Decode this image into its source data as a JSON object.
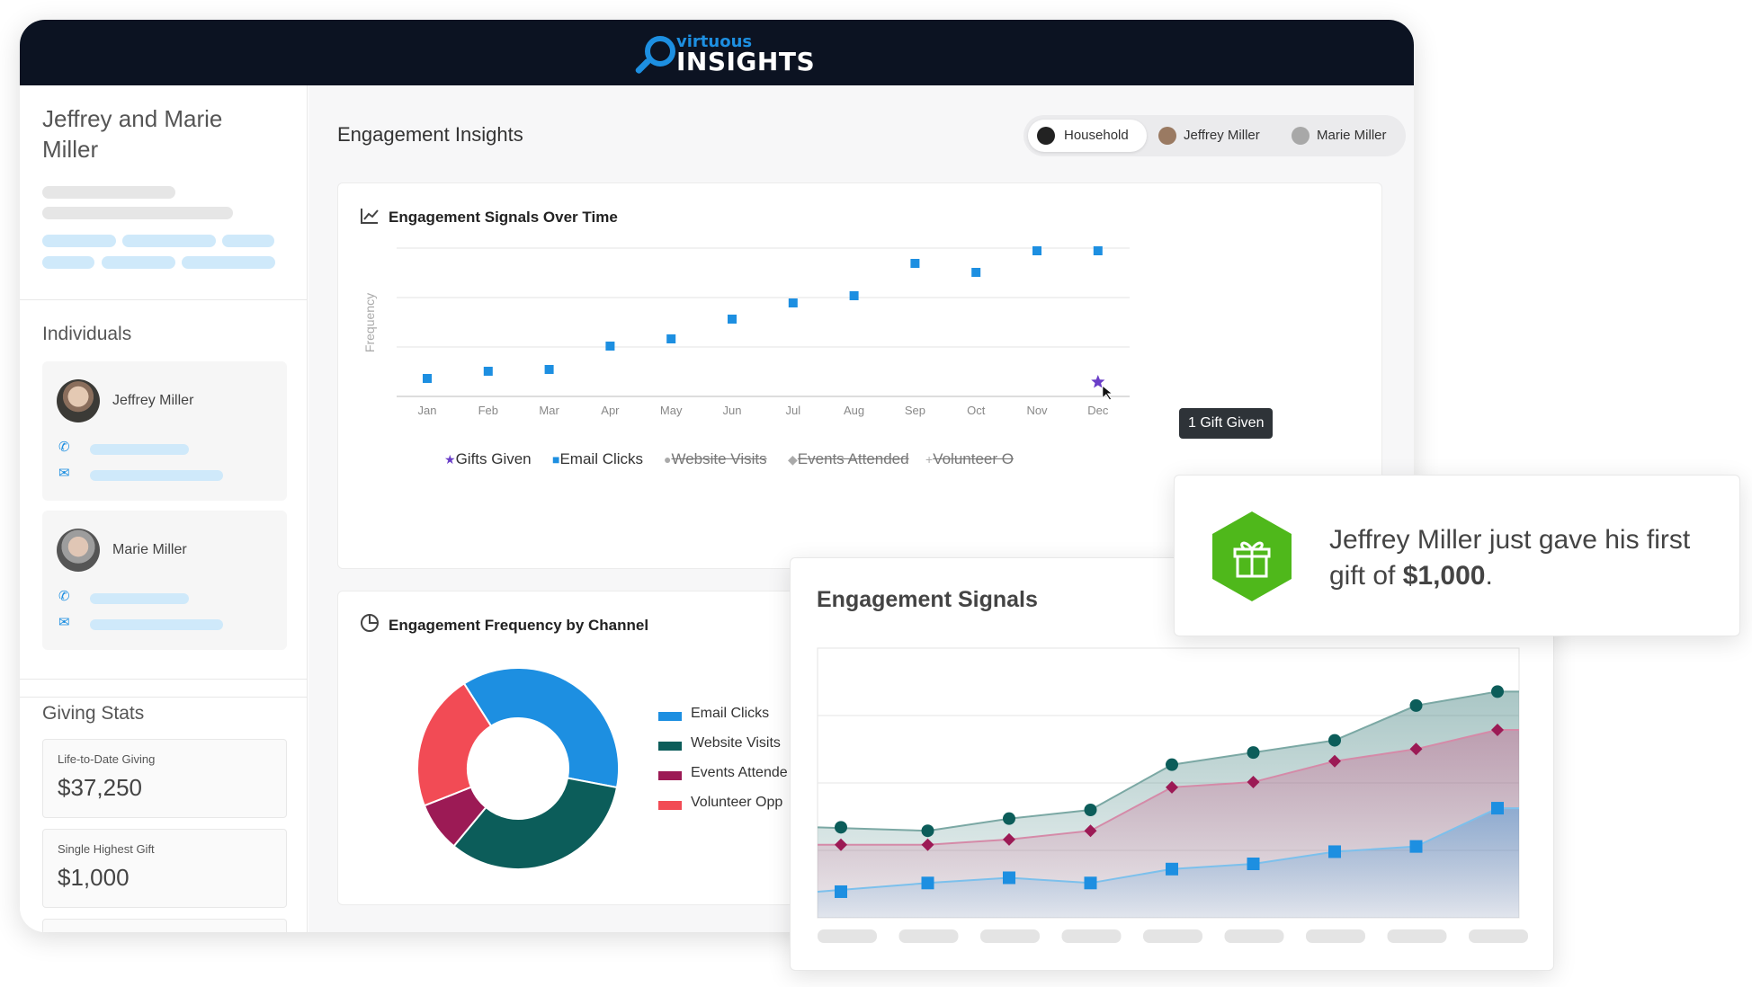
{
  "app": {
    "logo_small": "virtuous",
    "logo_big": "INSIGHTS"
  },
  "sidebar": {
    "donor_name": "Jeffrey and Marie Miller",
    "individuals_title": "Individuals",
    "individuals": [
      {
        "name": "Jeffrey Miller"
      },
      {
        "name": "Marie Miller"
      }
    ],
    "giving_title": "Giving Stats",
    "stats": [
      {
        "label": "Life-to-Date Giving",
        "value": "$37,250"
      },
      {
        "label": "Single Highest Gift",
        "value": "$1,000"
      }
    ]
  },
  "main": {
    "title": "Engagement Insights",
    "filters": [
      {
        "label": "Household",
        "active": true
      },
      {
        "label": "Jeffrey Miller",
        "active": false
      },
      {
        "label": "Marie Miller",
        "active": false
      }
    ]
  },
  "colors": {
    "brand_blue": "#1d8fe1",
    "teal": "#0c5d5a",
    "magenta": "#9c1a55",
    "coral": "#f24b55",
    "purple": "#6a3ec8",
    "green": "#4fb81b"
  },
  "signals_chart": {
    "title": "Engagement Signals Over Time",
    "tooltip": "1 Gift Given",
    "chart_data": {
      "type": "scatter",
      "ylabel": "Frequency",
      "categories": [
        "Jan",
        "Feb",
        "Mar",
        "Apr",
        "May",
        "Jun",
        "Jul",
        "Aug",
        "Sep",
        "Oct",
        "Nov",
        "Dec"
      ],
      "series": [
        {
          "name": "Email Clicks",
          "values": [
            0.5,
            0.7,
            0.75,
            1.4,
            1.6,
            2.15,
            2.6,
            2.8,
            3.7,
            3.45,
            4.05,
            4.05
          ]
        },
        {
          "name": "Gifts Given",
          "values": [
            null,
            null,
            null,
            null,
            null,
            null,
            null,
            null,
            null,
            null,
            null,
            0.75
          ]
        }
      ],
      "ylim": [
        0,
        6
      ]
    },
    "legend": [
      {
        "label": "Gifts Given",
        "icon": "star",
        "active": true
      },
      {
        "label": "Email Clicks",
        "icon": "square",
        "active": true
      },
      {
        "label": "Website Visits",
        "icon": "circle",
        "active": false
      },
      {
        "label": "Events Attended",
        "icon": "diamond",
        "active": false
      },
      {
        "label": "Volunteer O",
        "icon": "plus",
        "active": false
      }
    ]
  },
  "channel_chart": {
    "title": "Engagement Frequency by Channel",
    "chart_data": {
      "type": "pie",
      "labels": [
        "Email Clicks",
        "Website Visits",
        "Events Attende",
        "Volunteer Opp"
      ],
      "values": [
        37,
        33,
        8,
        22
      ]
    }
  },
  "float_signals": {
    "title": "Engagement Signals",
    "chart_data": {
      "type": "area",
      "categories": [
        "",
        "",
        "",
        "",
        "",
        "",
        "",
        "",
        "",
        ""
      ],
      "series": [
        {
          "name": "",
          "values": [
            52,
            50,
            57,
            62,
            88,
            95,
            102,
            122,
            130,
            130
          ]
        },
        {
          "name": "",
          "values": [
            42,
            42,
            45,
            50,
            75,
            78,
            90,
            97,
            108,
            108
          ]
        },
        {
          "name": "",
          "values": [
            15,
            20,
            23,
            20,
            28,
            31,
            38,
            41,
            63,
            63
          ]
        }
      ],
      "ylim": [
        0,
        155
      ]
    }
  },
  "notification": {
    "text_pre": "Jeffrey Miller just gave his first gift of ",
    "amount": "$1,000",
    "text_post": "."
  }
}
